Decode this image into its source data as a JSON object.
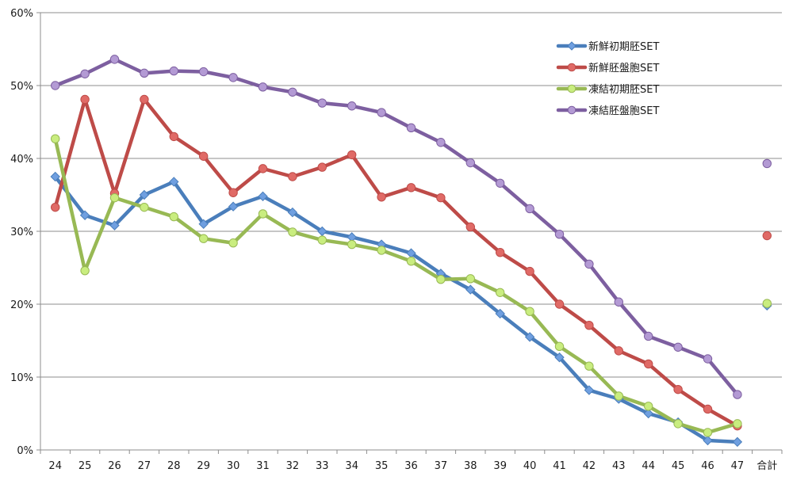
{
  "chart_data": {
    "type": "line",
    "categories": [
      "24",
      "25",
      "26",
      "27",
      "28",
      "29",
      "30",
      "31",
      "32",
      "33",
      "34",
      "35",
      "36",
      "37",
      "38",
      "39",
      "40",
      "41",
      "42",
      "43",
      "44",
      "45",
      "46",
      "47",
      "合計"
    ],
    "ylim": [
      0,
      60
    ],
    "yticks": [
      0,
      10,
      20,
      30,
      40,
      50,
      60
    ],
    "ytick_labels": [
      "0%",
      "10%",
      "20%",
      "30%",
      "40%",
      "50%",
      "60%"
    ],
    "grid": true,
    "legend_position": "top-right",
    "series": [
      {
        "name": "新鮮初期胚SET",
        "color": "#4a7ebb",
        "marker_fill": "#6f9fe0",
        "marker": "diamond",
        "values": [
          37.5,
          32.2,
          30.8,
          35.0,
          36.8,
          31.0,
          33.4,
          34.8,
          32.6,
          30.0,
          29.2,
          28.2,
          27.0,
          24.2,
          22.0,
          18.7,
          15.5,
          12.7,
          8.2,
          7.0,
          5.0,
          3.8,
          1.3,
          1.1,
          19.8
        ],
        "connect_last": false
      },
      {
        "name": "新鮮胚盤胞SET",
        "color": "#be4b48",
        "marker_fill": "#e06a66",
        "marker": "circle",
        "values": [
          33.3,
          48.1,
          35.2,
          48.1,
          43.0,
          40.3,
          35.3,
          38.6,
          37.5,
          38.8,
          40.5,
          34.7,
          36.0,
          34.6,
          30.6,
          27.1,
          24.5,
          20.0,
          17.1,
          13.6,
          11.8,
          8.3,
          5.6,
          3.3,
          29.4
        ],
        "connect_last": false
      },
      {
        "name": "凍結初期胚SET",
        "color": "#98b954",
        "marker_fill": "#c9ed7f",
        "marker": "circle",
        "values": [
          42.7,
          24.6,
          34.6,
          33.3,
          32.0,
          29.0,
          28.4,
          32.4,
          29.9,
          28.8,
          28.2,
          27.4,
          25.9,
          23.4,
          23.5,
          21.6,
          19.0,
          14.2,
          11.5,
          7.4,
          6.0,
          3.6,
          2.4,
          3.6,
          20.1
        ],
        "connect_last": false
      },
      {
        "name": "凍結胚盤胞SET",
        "color": "#7d5fa0",
        "marker_fill": "#b39ad4",
        "marker": "circle",
        "values": [
          50.0,
          51.6,
          53.6,
          51.7,
          52.0,
          51.9,
          51.1,
          49.8,
          49.1,
          47.6,
          47.2,
          46.3,
          44.2,
          42.2,
          39.4,
          36.6,
          33.1,
          29.6,
          25.5,
          20.3,
          15.6,
          14.1,
          12.5,
          7.6,
          39.3
        ],
        "connect_last": false
      }
    ]
  }
}
